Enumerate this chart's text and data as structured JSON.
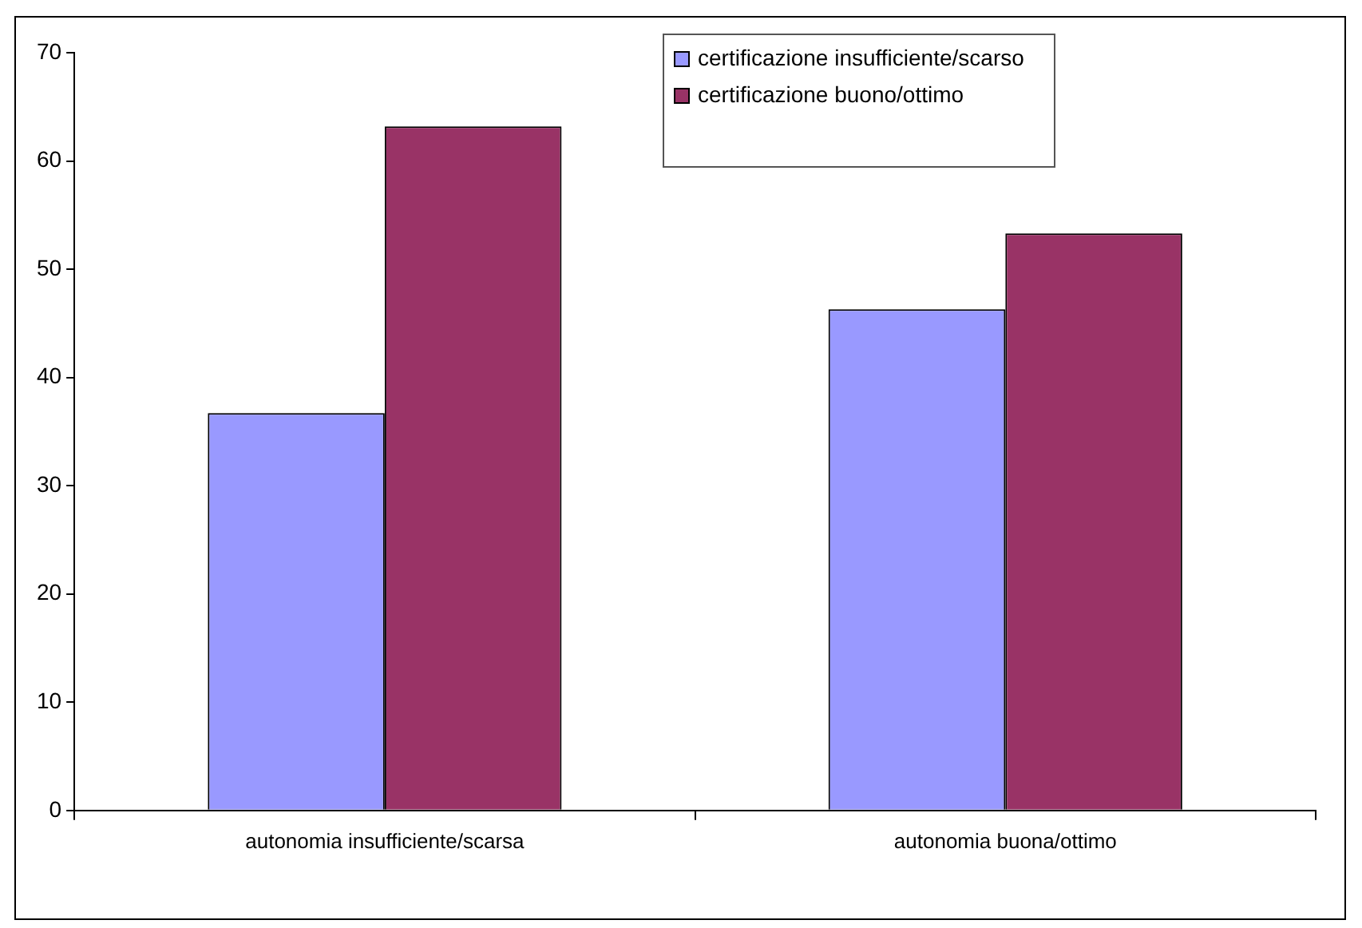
{
  "chart_data": {
    "type": "bar",
    "categories": [
      "autonomia insufficiente/scarsa",
      "autonomia buona/ottimo"
    ],
    "series": [
      {
        "name": "certificazione insufficiente/scarso",
        "color": "#9999ff",
        "values": [
          36.7,
          46.3
        ]
      },
      {
        "name": "certificazione buono/ottimo",
        "color": "#993366",
        "values": [
          63.2,
          53.3
        ]
      }
    ],
    "ylim": [
      0,
      70
    ],
    "yticks": [
      0,
      10,
      20,
      30,
      40,
      50,
      60,
      70
    ],
    "grid": false,
    "legend": "top"
  }
}
